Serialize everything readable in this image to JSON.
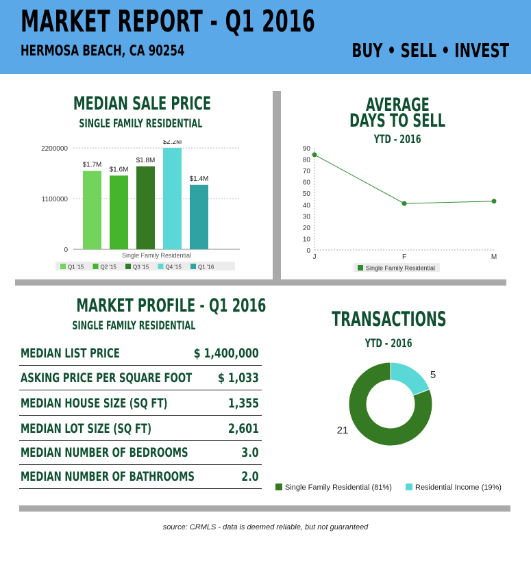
{
  "header": {
    "title": "MARKET REPORT - Q1 2016",
    "location": "HERMOSA BEACH, CA 90254",
    "tagline": "BUY • SELL • INVEST"
  },
  "colors": {
    "header_bg": "#5aa8e8",
    "heading_green": "#0f5030",
    "divider_gray": "#a9a9a9"
  },
  "median_price_panel": {
    "title": "MEDIAN SALE PRICE",
    "subtitle": "SINGLE FAMILY RESIDENTIAL"
  },
  "days_panel": {
    "title_line1": "AVERAGE",
    "title_line2": "DAYS TO SELL",
    "subtitle": "YTD - 2016"
  },
  "profile_panel": {
    "title": "MARKET PROFILE - Q1 2016",
    "subtitle": "SINGLE FAMILY RESIDENTIAL",
    "rows": [
      {
        "label": "MEDIAN LIST PRICE",
        "value": "$ 1,400,000"
      },
      {
        "label": "ASKING PRICE PER SQUARE FOOT",
        "value": "$  1,033"
      },
      {
        "label": "MEDIAN HOUSE SIZE (SQ FT)",
        "value": "1,355"
      },
      {
        "label": "MEDIAN LOT SIZE (SQ FT)",
        "value": "2,601"
      },
      {
        "label": "MEDIAN NUMBER OF BEDROOMS",
        "value": "3.0"
      },
      {
        "label": "MEDIAN NUMBER OF BATHROOMS",
        "value": "2.0"
      }
    ]
  },
  "transactions_panel": {
    "title": "TRANSACTIONS",
    "subtitle": "YTD - 2016"
  },
  "source": "source:  CRMLS - data is deemed reliable, but not guaranteed",
  "chart_data": [
    {
      "type": "bar",
      "xlabel": "Single Family Residential",
      "categories": [
        "Q1 '15",
        "Q2 '15",
        "Q3 '15",
        "Q4 '15",
        "Q1 '16"
      ],
      "values": [
        1700000,
        1600000,
        1800000,
        2200000,
        1400000
      ],
      "data_labels": [
        "$1.7M",
        "$1.6M",
        "$1.8M",
        "$2.2M",
        "$1.4M"
      ],
      "colors": [
        "#72d45a",
        "#45b52c",
        "#357a23",
        "#5ad8d8",
        "#2fa3a3"
      ],
      "yticks": [
        "0",
        "1100000",
        "2200000"
      ],
      "ylim": [
        0,
        2200000
      ],
      "grid": true,
      "legend": "bottom"
    },
    {
      "type": "line",
      "categories": [
        "J",
        "F",
        "M"
      ],
      "values": [
        84,
        41,
        43
      ],
      "series": [
        {
          "name": "Single Family Residential",
          "values": [
            84,
            41,
            43
          ]
        }
      ],
      "color": "#2e8b2e",
      "yticks": [
        "0",
        "10",
        "20",
        "30",
        "40",
        "50",
        "60",
        "70",
        "80",
        "90"
      ],
      "ylim": [
        0,
        90
      ],
      "grid": false,
      "legend": "bottom"
    },
    {
      "type": "pie",
      "donut": true,
      "series": [
        {
          "name": "Single Family Residential (81%)",
          "value": 21,
          "label": "21",
          "color": "#357a23"
        },
        {
          "name": "Residential Income (19%)",
          "value": 5,
          "label": "5",
          "color": "#5ad8d8"
        }
      ],
      "legend": "bottom"
    }
  ]
}
